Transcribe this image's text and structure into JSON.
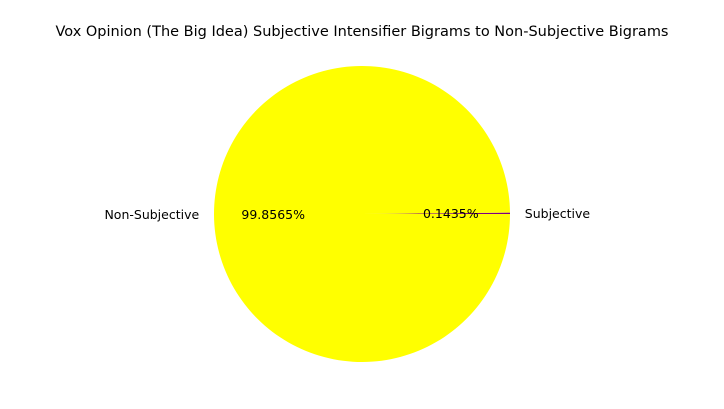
{
  "chart_data": {
    "type": "pie",
    "title": "Vox Opinion (The Big Idea) Subjective Intensifier Bigrams to Non-Subjective Bigrams",
    "slices": [
      {
        "label": "Subjective",
        "value": 0.1435,
        "percent_label": "0.1435%",
        "color": "#800080"
      },
      {
        "label": "Non-Subjective",
        "value": 99.8565,
        "percent_label": "99.8565%",
        "color": "#ffff00"
      }
    ],
    "start_angle_deg": 0,
    "direction": "counterclockwise",
    "legend": "none"
  }
}
